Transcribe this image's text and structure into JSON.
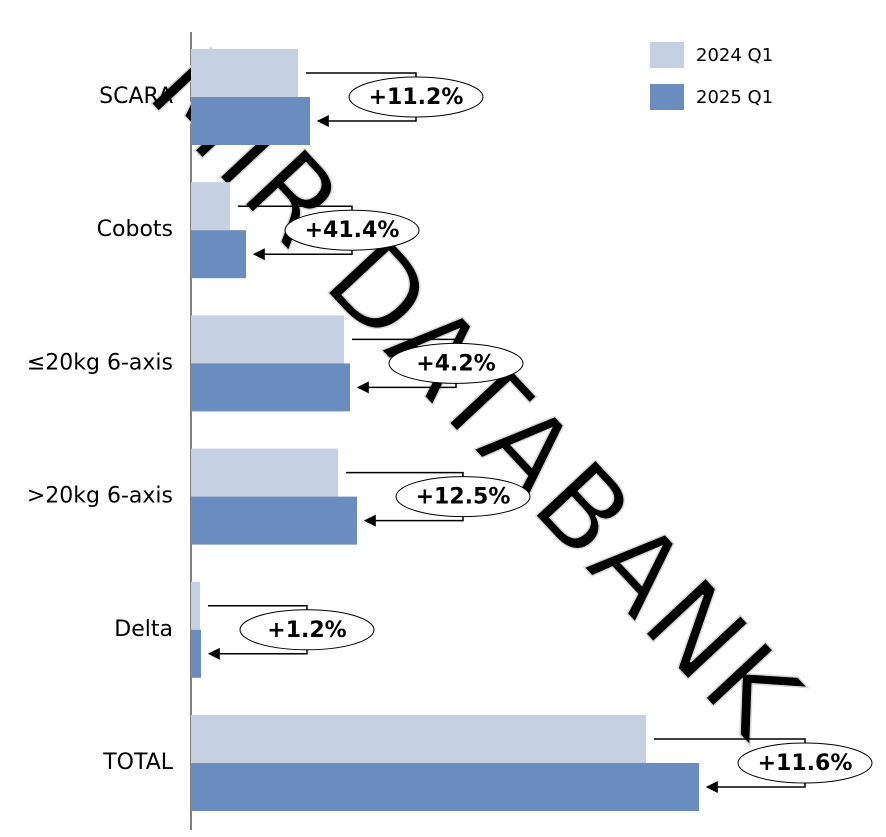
{
  "chart_data": {
    "type": "bar",
    "orientation": "horizontal",
    "categories": [
      "SCARA",
      "Cobots",
      "≤20kg 6-axis",
      ">20kg 6-axis",
      "Delta",
      "TOTAL"
    ],
    "series": [
      {
        "name": "2024 Q1",
        "color": "#c5d0e3",
        "values": [
          107,
          39,
          153,
          147,
          9,
          455
        ]
      },
      {
        "name": "2025 Q1",
        "color": "#6b8cbe",
        "values": [
          119,
          55,
          159,
          166,
          10,
          508
        ]
      }
    ],
    "annotations": [
      "+11.2%",
      "+41.4%",
      "+4.2%",
      "+12.5%",
      "+1.2%",
      "+11.6%"
    ],
    "xlim": [
      0,
      695
    ],
    "legend": "top-right",
    "watermark": "MIR DATABANK"
  }
}
